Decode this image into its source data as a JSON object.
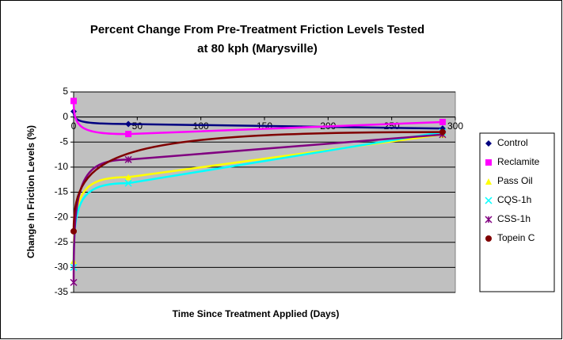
{
  "chart_data": {
    "type": "scatter",
    "title": "Percent Change From Pre-Treatment Friction Levels Tested",
    "subtitle": "at 80 kph (Marysville)",
    "x_label": "Time Since Treatment Applied (Days)",
    "y_label": "Change In Friction Levels (%)",
    "xlim": [
      0,
      300
    ],
    "xticks": [
      0,
      50,
      100,
      150,
      200,
      250,
      300
    ],
    "ylim": [
      -35,
      5
    ],
    "yticks": [
      -35,
      -30,
      -25,
      -20,
      -15,
      -10,
      -5,
      0,
      5
    ],
    "grid": true,
    "legend": "right",
    "series": [
      {
        "name": "Control",
        "color": "#000080",
        "marker": "diamond",
        "x": [
          0,
          43,
          290
        ],
        "values": [
          1.1,
          -1.4,
          -2.3
        ]
      },
      {
        "name": "Reclamite",
        "color": "#FF00FF",
        "marker": "square",
        "x": [
          0,
          43,
          290
        ],
        "values": [
          3.2,
          -3.4,
          -1
        ]
      },
      {
        "name": "Pass Oil",
        "color": "#FFFF00",
        "marker": "triangle",
        "x": [
          0,
          43,
          290
        ],
        "values": [
          -28.7,
          -12,
          -3.5
        ]
      },
      {
        "name": "CQS-1h",
        "color": "#00FFFF",
        "marker": "x",
        "x": [
          0,
          43,
          290
        ],
        "values": [
          -30,
          -13.2,
          -3
        ]
      },
      {
        "name": "CSS-1h",
        "color": "#800080",
        "marker": "star",
        "x": [
          0,
          43,
          290
        ],
        "values": [
          -33,
          -8.5,
          -3.5
        ]
      },
      {
        "name": "Topein C",
        "color": "#800000",
        "marker": "circle",
        "x": [
          0,
          290
        ],
        "values": [
          -22.8,
          -3
        ]
      }
    ]
  }
}
